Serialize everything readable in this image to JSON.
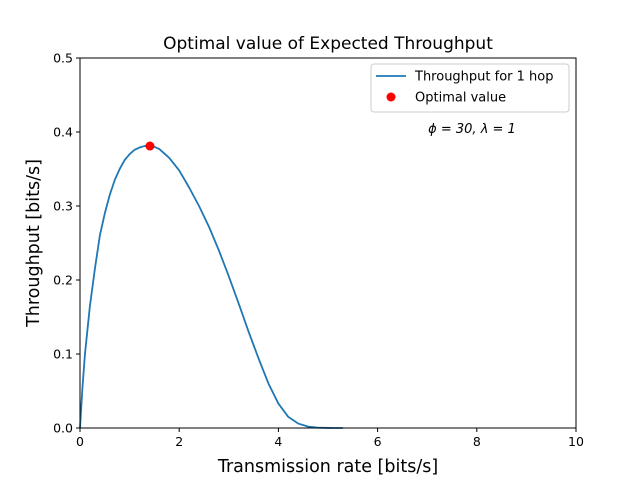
{
  "chart_data": {
    "type": "line",
    "title": "Optimal value of Expected Throughput",
    "xlabel": "Transmission rate [bits/s]",
    "ylabel": "Throughput [bits/s]",
    "xlim": [
      0,
      10
    ],
    "ylim": [
      0,
      0.5
    ],
    "xticks": [
      0,
      2,
      4,
      6,
      8,
      10
    ],
    "xtick_labels": [
      "0",
      "2",
      "4",
      "6",
      "8",
      "10"
    ],
    "yticks": [
      0,
      0.1,
      0.2,
      0.3,
      0.4,
      0.5
    ],
    "ytick_labels": [
      "0.0",
      "0.1",
      "0.2",
      "0.3",
      "0.4",
      "0.5"
    ],
    "grid": false,
    "legend_position": "top-right",
    "annotation": "ϕ = 30,  λ = 1",
    "series": [
      {
        "name": "Throughput for 1 hop",
        "kind": "line",
        "color": "#1f77b4",
        "x": [
          0,
          0.05,
          0.1,
          0.2,
          0.3,
          0.4,
          0.5,
          0.6,
          0.7,
          0.8,
          0.9,
          1.0,
          1.1,
          1.2,
          1.3,
          1.41,
          1.5,
          1.6,
          1.8,
          2.0,
          2.2,
          2.4,
          2.6,
          2.8,
          3.0,
          3.2,
          3.4,
          3.6,
          3.8,
          4.0,
          4.2,
          4.4,
          4.6,
          4.8,
          5.0,
          5.1,
          5.3
        ],
        "y": [
          0,
          0.055,
          0.1,
          0.165,
          0.215,
          0.26,
          0.29,
          0.315,
          0.335,
          0.35,
          0.362,
          0.37,
          0.376,
          0.379,
          0.381,
          0.381,
          0.38,
          0.377,
          0.365,
          0.348,
          0.325,
          0.3,
          0.272,
          0.24,
          0.205,
          0.168,
          0.13,
          0.094,
          0.06,
          0.033,
          0.015,
          0.006,
          0.0018,
          0.0004,
          0.0001,
          0,
          0
        ]
      },
      {
        "name": "Optimal value",
        "kind": "marker",
        "color": "#ff0000",
        "x": [
          1.41
        ],
        "y": [
          0.381
        ]
      }
    ]
  }
}
